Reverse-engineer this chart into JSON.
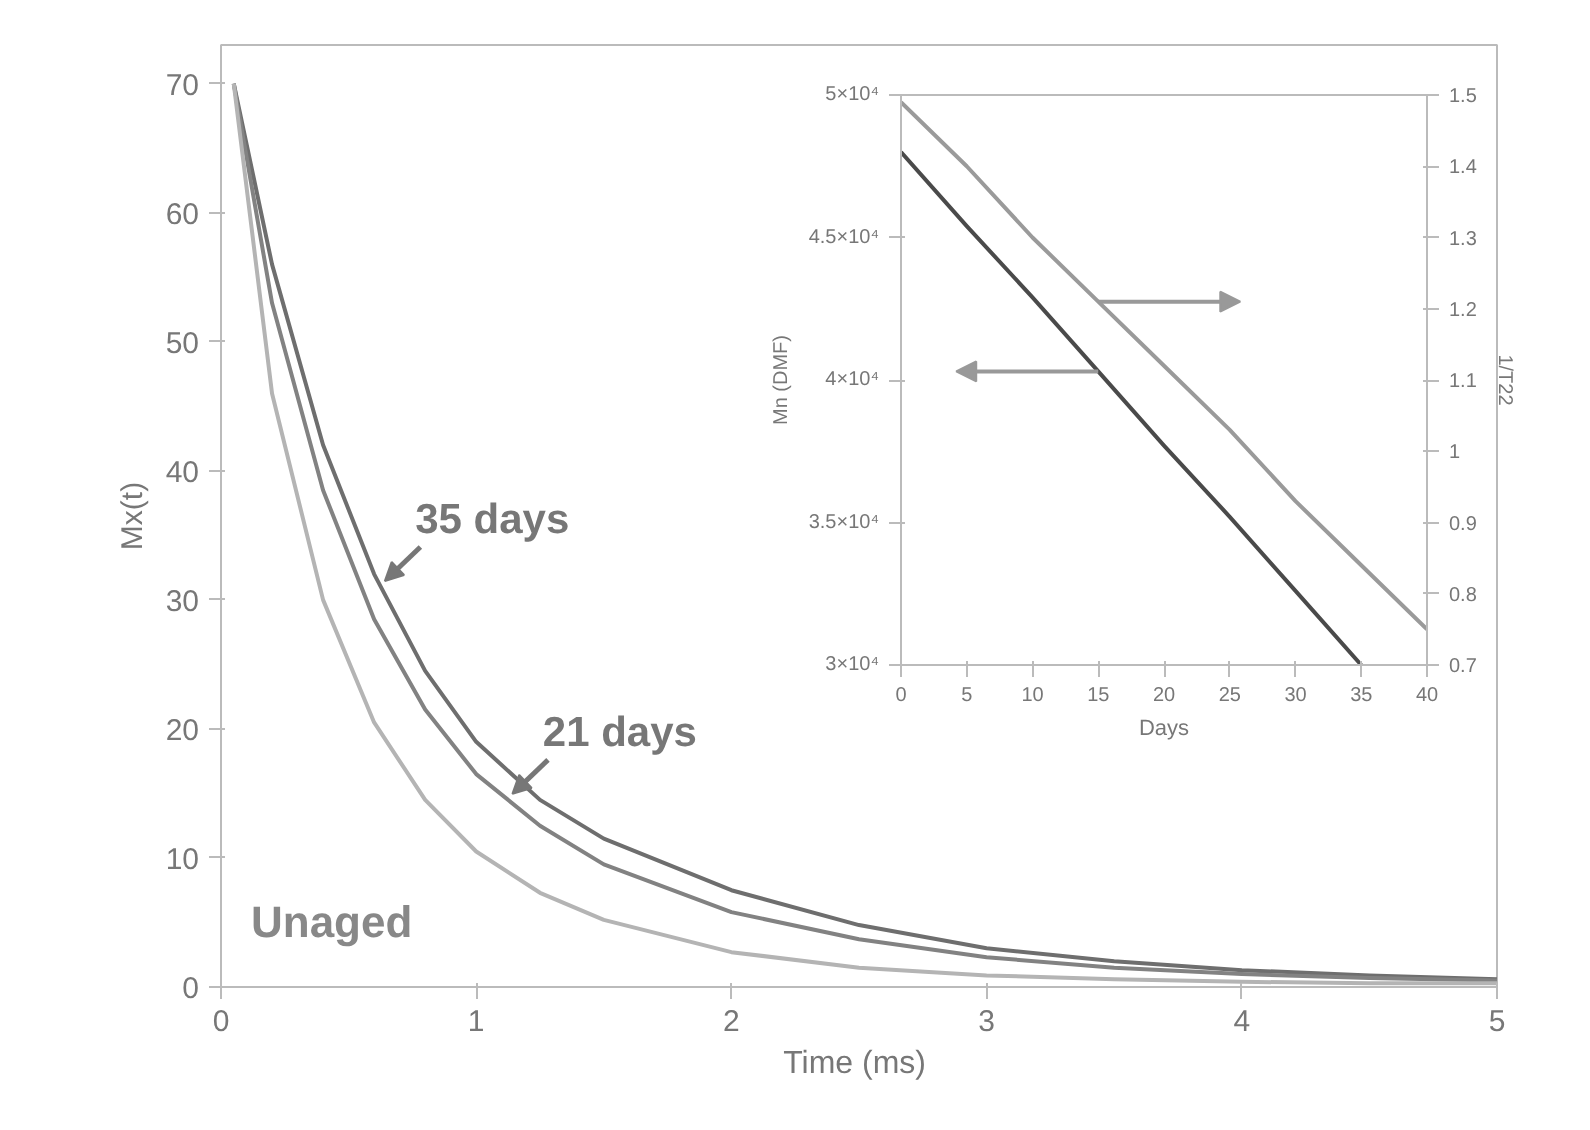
{
  "chart_data": [
    {
      "type": "line",
      "xlabel": "Time  (ms)",
      "ylabel": "Mx(t)",
      "xlim": [
        0,
        5
      ],
      "ylim": [
        0,
        73
      ],
      "xticks": [
        0,
        1,
        2,
        3,
        4,
        5
      ],
      "yticks": [
        0,
        10,
        20,
        30,
        40,
        50,
        60,
        70
      ],
      "grid": false,
      "marker": "none",
      "line_style": "solid",
      "x": [
        0.05,
        0.2,
        0.4,
        0.6,
        0.8,
        1.0,
        1.25,
        1.5,
        2,
        2.5,
        3,
        3.5,
        4,
        4.5,
        5
      ],
      "series": [
        {
          "color": "#6e6e6e",
          "values": [
            70,
            56,
            42,
            32,
            24.5,
            19,
            14.5,
            11.5,
            7.5,
            4.8,
            3,
            2,
            1.3,
            0.9,
            0.6
          ]
        },
        {
          "color": "#828282",
          "values": [
            70,
            53,
            38.5,
            28.5,
            21.5,
            16.5,
            12.5,
            9.5,
            5.8,
            3.7,
            2.3,
            1.5,
            1,
            0.7,
            0.5
          ]
        },
        {
          "color": "#b4b4b4",
          "values": [
            70,
            46,
            30,
            20.5,
            14.5,
            10.5,
            7.3,
            5.2,
            2.7,
            1.5,
            0.9,
            0.6,
            0.4,
            0.3,
            0.3
          ]
        }
      ],
      "annotations": [
        {
          "text": "35 days",
          "x": 0.62,
          "y": 31
        },
        {
          "text": "21 days",
          "x": 1.12,
          "y": 14.5
        },
        "Unaged"
      ]
    },
    {
      "type": "line",
      "xlabel": "Days",
      "ylabel": "Mn (DMF)",
      "y2label": "1/T22",
      "xlim": [
        0,
        40
      ],
      "ylim": [
        30000,
        50000
      ],
      "y2lim": [
        0.7,
        1.5
      ],
      "xticks": [
        0,
        5,
        10,
        15,
        20,
        25,
        30,
        35,
        40
      ],
      "yticks": [
        {
          "value": 30000,
          "label": "3×10⁴"
        },
        {
          "value": 35000,
          "label": "3.5×10⁴"
        },
        {
          "value": 40000,
          "label": "4×10⁴"
        },
        {
          "value": 45000,
          "label": "4.5×10⁴"
        },
        {
          "value": 50000,
          "label": "5×10⁴"
        }
      ],
      "y2ticks": [
        0.7,
        0.8,
        0.9,
        1,
        1.1,
        1.2,
        1.3,
        1.4,
        1.5
      ],
      "grid": false,
      "marker": "none",
      "line_style": "solid",
      "series": [
        {
          "color": "#4a4a4a",
          "x": [
            0,
            5,
            10,
            15,
            20,
            25,
            30,
            35
          ],
          "values": [
            48000,
            45400,
            42900,
            40300,
            37700,
            35200,
            32600,
            30000
          ]
        },
        {
          "color": "#9a9a9a",
          "axis": "y2",
          "x": [
            0,
            5,
            10,
            15,
            20,
            25,
            30,
            35,
            40
          ],
          "values": [
            1.49,
            1.4,
            1.3,
            1.21,
            1.12,
            1.03,
            0.93,
            0.84,
            0.75
          ]
        }
      ]
    }
  ]
}
